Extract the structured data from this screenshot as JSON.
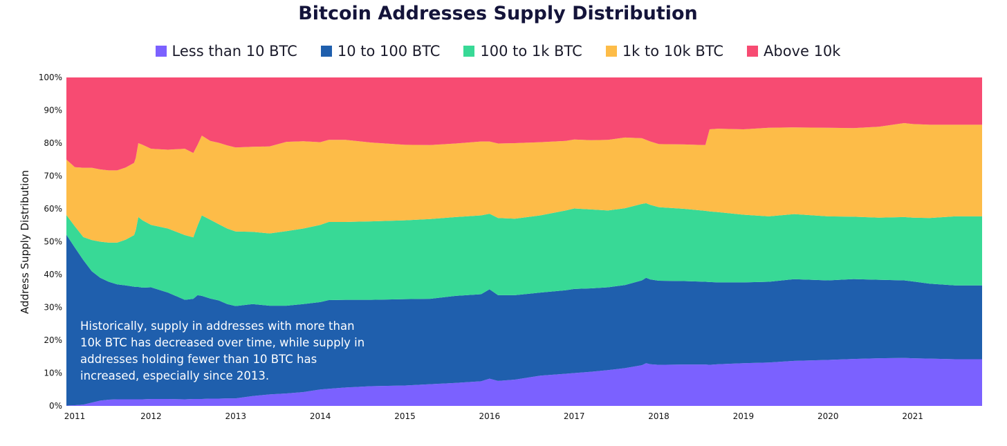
{
  "chart_data": {
    "type": "area",
    "stacked": true,
    "normalized": true,
    "title": "Bitcoin Addresses Supply Distribution",
    "ylabel": "Address Supply Distribution",
    "xlabel": "",
    "ylim": [
      0,
      100
    ],
    "yticks": [
      "0%",
      "10%",
      "20%",
      "30%",
      "40%",
      "50%",
      "60%",
      "70%",
      "80%",
      "90%",
      "100%"
    ],
    "xticks": [
      "2011",
      "2012",
      "2013",
      "2014",
      "2015",
      "2016",
      "2017",
      "2018",
      "2019",
      "2020",
      "2021"
    ],
    "xlim": [
      2011.0,
      2021.82
    ],
    "legend_position": "top-center",
    "x": [
      2011.0,
      2011.1,
      2011.2,
      2011.3,
      2011.4,
      2011.5,
      2011.6,
      2011.7,
      2011.8,
      2011.82,
      2011.85,
      2011.9,
      2012.0,
      2012.2,
      2012.4,
      2012.5,
      2012.55,
      2012.6,
      2012.7,
      2012.8,
      2012.9,
      2013.0,
      2013.2,
      2013.4,
      2013.6,
      2013.8,
      2014.0,
      2014.1,
      2014.3,
      2014.6,
      2015.0,
      2015.3,
      2015.6,
      2015.9,
      2016.0,
      2016.1,
      2016.3,
      2016.6,
      2016.9,
      2017.0,
      2017.2,
      2017.4,
      2017.6,
      2017.8,
      2017.85,
      2017.9,
      2018.0,
      2018.3,
      2018.55,
      2018.6,
      2018.7,
      2019.0,
      2019.3,
      2019.6,
      2020.0,
      2020.3,
      2020.6,
      2020.9,
      2021.0,
      2021.2,
      2021.5,
      2021.82
    ],
    "series": [
      {
        "name": "Less than 10 BTC",
        "color": "#7b61ff",
        "values": [
          0.1,
          0.2,
          0.4,
          1.0,
          1.6,
          1.9,
          2.0,
          2.0,
          2.0,
          2.0,
          2.0,
          2.0,
          2.1,
          2.1,
          2.0,
          2.1,
          2.1,
          2.1,
          2.2,
          2.2,
          2.3,
          2.3,
          3.0,
          3.5,
          3.8,
          4.2,
          5.0,
          5.2,
          5.6,
          6.0,
          6.2,
          6.6,
          7.0,
          7.5,
          8.3,
          7.6,
          8.0,
          9.2,
          9.8,
          10.0,
          10.4,
          10.9,
          11.5,
          12.4,
          13.0,
          12.7,
          12.5,
          12.6,
          12.6,
          12.5,
          12.7,
          13.0,
          13.2,
          13.7,
          14.0,
          14.3,
          14.5,
          14.6,
          14.5,
          14.4,
          14.2,
          14.2
        ]
      },
      {
        "name": "10 to 100 BTC",
        "color": "#1f5fad",
        "values": [
          52.0,
          48.0,
          44.0,
          40.0,
          37.4,
          35.9,
          35.0,
          34.7,
          34.3,
          34.2,
          34.2,
          34.0,
          34.0,
          32.4,
          30.3,
          30.5,
          31.6,
          31.4,
          30.5,
          29.9,
          28.7,
          28.1,
          28.0,
          27.0,
          26.7,
          26.8,
          26.6,
          27.0,
          26.7,
          26.3,
          26.3,
          26.0,
          26.5,
          26.5,
          27.2,
          26.1,
          25.7,
          25.3,
          25.4,
          25.6,
          25.4,
          25.2,
          25.3,
          25.8,
          26.0,
          25.8,
          25.6,
          25.4,
          25.2,
          25.2,
          24.9,
          24.6,
          24.6,
          24.9,
          24.2,
          24.3,
          23.9,
          23.6,
          23.4,
          22.8,
          22.5,
          22.5
        ]
      },
      {
        "name": "100 to 1k BTC",
        "color": "#38d996",
        "values": [
          6.0,
          6.5,
          7.0,
          9.5,
          11.0,
          11.9,
          12.7,
          13.9,
          15.7,
          17.3,
          21.3,
          20.5,
          19.0,
          19.5,
          19.7,
          18.7,
          21.2,
          24.5,
          24.0,
          23.2,
          23.0,
          22.7,
          22.0,
          22.0,
          22.7,
          23.0,
          23.5,
          23.8,
          23.7,
          23.9,
          24.0,
          24.3,
          24.0,
          24.0,
          23.0,
          23.5,
          23.3,
          23.5,
          24.3,
          24.5,
          24.0,
          23.4,
          23.4,
          23.3,
          22.7,
          22.7,
          22.4,
          22.0,
          21.6,
          21.5,
          21.4,
          20.6,
          19.9,
          19.8,
          19.5,
          19.0,
          18.9,
          19.3,
          19.4,
          20.0,
          21.0,
          21.0
        ]
      },
      {
        "name": "1k to 10k BTC",
        "color": "#fdbc48",
        "values": [
          16.9,
          18.0,
          21.1,
          22.0,
          22.0,
          22.0,
          22.0,
          22.0,
          22.0,
          22.0,
          22.5,
          23.0,
          23.2,
          24.0,
          26.3,
          25.7,
          24.6,
          24.3,
          24.0,
          24.8,
          25.3,
          25.6,
          25.9,
          26.5,
          27.2,
          26.6,
          25.2,
          25.0,
          25.0,
          24.0,
          23.0,
          22.5,
          22.4,
          22.5,
          22.0,
          22.7,
          23.0,
          22.3,
          21.2,
          21.0,
          21.1,
          21.5,
          21.5,
          20.0,
          19.3,
          19.3,
          19.2,
          19.6,
          20.0,
          25.0,
          25.4,
          26.0,
          27.0,
          26.4,
          27.0,
          27.0,
          27.7,
          28.6,
          28.5,
          28.4,
          27.9,
          27.9
        ]
      },
      {
        "name": "Above 10k",
        "color": "#f74b72",
        "values": [
          25.0,
          27.3,
          27.5,
          27.5,
          28.0,
          28.3,
          28.3,
          27.4,
          26.0,
          24.5,
          20.0,
          20.5,
          21.7,
          22.0,
          21.7,
          23.0,
          20.5,
          17.7,
          19.3,
          19.9,
          20.7,
          21.3,
          21.1,
          21.0,
          19.6,
          19.4,
          19.7,
          19.0,
          19.0,
          19.8,
          20.5,
          20.6,
          20.1,
          19.5,
          19.5,
          20.1,
          20.0,
          19.7,
          19.3,
          18.9,
          19.1,
          19.0,
          18.3,
          18.5,
          19.0,
          19.5,
          20.3,
          20.4,
          20.6,
          15.8,
          15.6,
          15.8,
          15.3,
          15.2,
          15.3,
          15.4,
          15.0,
          13.9,
          14.2,
          14.4,
          14.4,
          14.4
        ]
      }
    ],
    "annotation": "Historically, supply in addresses with more than 10k BTC has decreased over time, while supply in addresses holding fewer than 10 BTC has increased, especially since 2013."
  }
}
